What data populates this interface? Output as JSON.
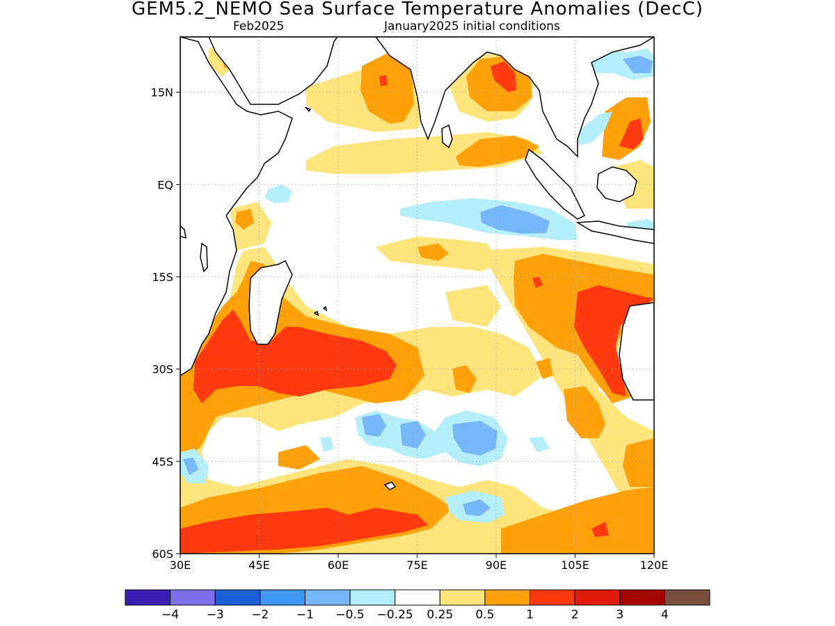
{
  "title": "GEM5.2_NEMO Sea Surface Temperature Anomalies (DecC)",
  "subtitle_left": "Feb2025",
  "subtitle_right": "January2025 initial conditions",
  "map": {
    "lon_range": [
      30,
      120
    ],
    "lat_range": [
      -60,
      24
    ],
    "x_ticks": [
      {
        "value": 30,
        "label": "30E"
      },
      {
        "value": 45,
        "label": "45E"
      },
      {
        "value": 60,
        "label": "60E"
      },
      {
        "value": 75,
        "label": "75E"
      },
      {
        "value": 90,
        "label": "90E"
      },
      {
        "value": 105,
        "label": "105E"
      },
      {
        "value": 120,
        "label": "120E"
      }
    ],
    "y_ticks": [
      {
        "value": 15,
        "label": "15N"
      },
      {
        "value": 0,
        "label": "EQ"
      },
      {
        "value": -15,
        "label": "15S"
      },
      {
        "value": -30,
        "label": "30S"
      },
      {
        "value": -45,
        "label": "45S"
      },
      {
        "value": -60,
        "label": "60S"
      }
    ],
    "grid": true
  },
  "colorbar": {
    "colors": [
      "#3a1fb5",
      "#7f6fea",
      "#1a5fd6",
      "#3f96f5",
      "#78b6fa",
      "#b3eefa",
      "#ffffff",
      "#ffe47c",
      "#ffa10a",
      "#ff3a0f",
      "#e11b0b",
      "#a50505",
      "#7a4e40"
    ],
    "labels": [
      "-4",
      "-3",
      "-2",
      "-1",
      "-0.5",
      "-0.25",
      "0.25",
      "0.5",
      "1",
      "2",
      "3",
      "4"
    ]
  },
  "anomaly_patches": [
    {
      "id": "arabian-sea-warm",
      "value_range": [
        0.5,
        1
      ],
      "center": [
        67,
        16
      ]
    },
    {
      "id": "bay-of-bengal-warm",
      "value_range": [
        1,
        2
      ],
      "center": [
        89,
        16
      ]
    },
    {
      "id": "south-china-sea-warm",
      "value_range": [
        1,
        2
      ],
      "center": [
        115,
        12
      ]
    },
    {
      "id": "equatorial-cool",
      "value_range": [
        -1,
        -0.25
      ],
      "center": [
        85,
        -5
      ]
    },
    {
      "id": "west-australia-warm",
      "value_range": [
        1,
        2
      ],
      "center": [
        110,
        -20
      ]
    },
    {
      "id": "south-madagascar-warm",
      "value_range": [
        1,
        2
      ],
      "center": [
        50,
        -27
      ]
    },
    {
      "id": "southern-ocean-cool",
      "value_range": [
        -1,
        -0.25
      ],
      "center": [
        80,
        -42
      ]
    },
    {
      "id": "southern-band-warm",
      "value_range": [
        1,
        2
      ],
      "center": [
        60,
        -56
      ]
    }
  ]
}
